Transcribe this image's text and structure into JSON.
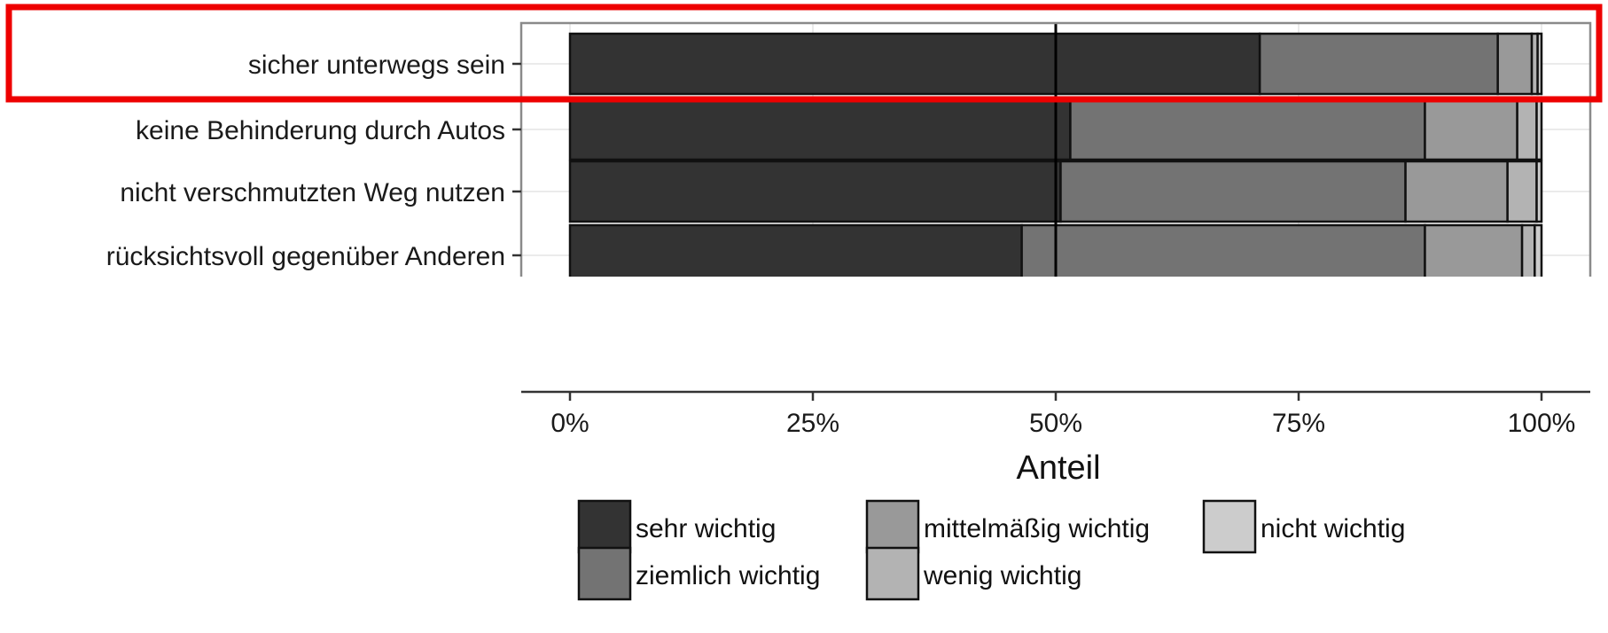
{
  "chart_data": {
    "type": "bar",
    "orientation": "horizontal",
    "stacked": true,
    "categories": [
      "sicher unterwegs sein",
      "keine Behinderung durch Autos",
      "nicht verschmutzten Weg nutzen",
      "rücksichtsvoll gegenüber Anderen"
    ],
    "series": [
      {
        "name": "sehr wichtig",
        "color": "#333333",
        "values": [
          0.71,
          0.515,
          0.505,
          0.465
        ]
      },
      {
        "name": "ziemlich wichtig",
        "color": "#737373",
        "values": [
          0.245,
          0.365,
          0.355,
          0.415
        ]
      },
      {
        "name": "mittelmäßig wichtig",
        "color": "#999999",
        "values": [
          0.035,
          0.095,
          0.105,
          0.1
        ]
      },
      {
        "name": "wenig wichtig",
        "color": "#b3b3b3",
        "values": [
          0.006,
          0.02,
          0.03,
          0.013
        ]
      },
      {
        "name": "nicht wichtig",
        "color": "#cccccc",
        "values": [
          0.004,
          0.005,
          0.005,
          0.007
        ]
      }
    ],
    "xlim": [
      0,
      1
    ],
    "x_ticks": [
      "0%",
      "25%",
      "50%",
      "75%",
      "100%"
    ],
    "x_tick_values": [
      0,
      0.25,
      0.5,
      0.75,
      1
    ],
    "xlabel": "Anteil",
    "ylabel": "",
    "reference_line": 0.5,
    "grid": true,
    "legend_position": "bottom",
    "highlight": {
      "category": "sicher unterwegs sein",
      "color": "#ee0000"
    }
  }
}
